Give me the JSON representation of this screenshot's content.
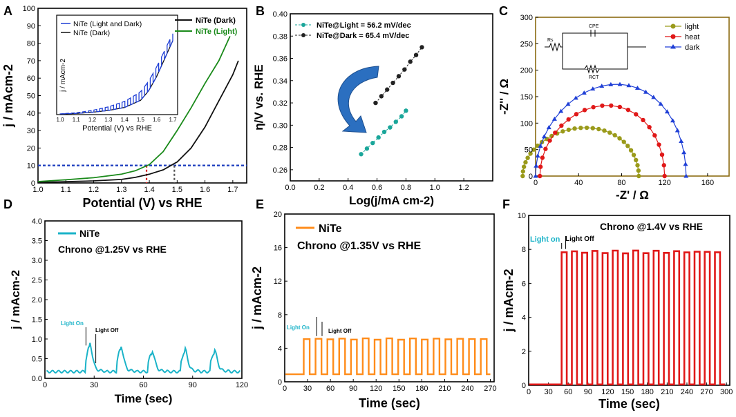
{
  "chart_data": [
    {
      "panel": "A",
      "type": "line",
      "xlabel": "Potential (V) vs RHE",
      "ylabel": "j / mAcm-2",
      "xlim": [
        1.0,
        1.75
      ],
      "ylim": [
        0,
        100
      ],
      "xticks": [
        1.0,
        1.1,
        1.2,
        1.3,
        1.4,
        1.5,
        1.6,
        1.7
      ],
      "yticks": [
        0,
        10,
        20,
        30,
        40,
        50,
        60,
        70,
        80,
        90,
        100
      ],
      "legend": [
        "NiTe (Dark)",
        "NiTe (Light)"
      ],
      "series": [
        {
          "name": "NiTe (Dark)",
          "color": "#111111",
          "x": [
            1.0,
            1.1,
            1.2,
            1.3,
            1.35,
            1.4,
            1.45,
            1.5,
            1.55,
            1.6,
            1.65,
            1.7,
            1.72
          ],
          "y": [
            0.3,
            0.7,
            1.2,
            2.0,
            3.2,
            5.0,
            7.5,
            12,
            20,
            32,
            47,
            62,
            70
          ]
        },
        {
          "name": "NiTe (Light)",
          "color": "#1a8a1a",
          "x": [
            1.0,
            1.1,
            1.2,
            1.3,
            1.35,
            1.4,
            1.45,
            1.5,
            1.55,
            1.6,
            1.65,
            1.69
          ],
          "y": [
            0.8,
            1.8,
            3.0,
            5.0,
            7.0,
            10.5,
            18,
            30,
            43,
            57,
            70,
            84
          ]
        }
      ],
      "reference_line": {
        "y": 10,
        "color": "#1f3fbf"
      },
      "markers": [
        {
          "x": 1.39,
          "color": "#d62020"
        },
        {
          "x": 1.49,
          "color": "#555555"
        }
      ],
      "inset": {
        "xlabel": "Potential (V) vs RHE",
        "ylabel": "j / mAcm-2",
        "xlim": [
          1.0,
          1.7
        ],
        "xticks": [
          "1.0",
          "1.1",
          "1.2",
          "1.3",
          "1.4",
          "1.5",
          "1.6",
          "1.7"
        ],
        "legend": [
          "NiTe (Light and Dark)",
          "NiTe (Dark)"
        ],
        "series": [
          {
            "name": "NiTe (Dark)",
            "color": "#111111",
            "x": [
              1.0,
              1.1,
              1.2,
              1.3,
              1.4,
              1.5,
              1.55,
              1.6,
              1.65,
              1.7
            ],
            "y": [
              0.5,
              1.0,
              2.0,
              3.5,
              6,
              12,
              20,
              32,
              47,
              62
            ]
          },
          {
            "name": "NiTe (Light and Dark)",
            "color": "#1f3fd6",
            "x": [
              1.0,
              1.1,
              1.2,
              1.3,
              1.4,
              1.5,
              1.55,
              1.6,
              1.65,
              1.7
            ],
            "y": [
              0.6,
              1.5,
              3.5,
              6.5,
              11,
              19,
              28,
              40,
              54,
              68
            ]
          }
        ]
      }
    },
    {
      "panel": "B",
      "type": "scatter",
      "xlabel": "Log(j/mA cm-2)",
      "ylabel": "η/V vs. RHE",
      "xlim": [
        0.0,
        1.4
      ],
      "ylim": [
        0.25,
        0.4
      ],
      "xticks": [
        0.0,
        0.2,
        0.4,
        0.6,
        0.8,
        1.0,
        1.2
      ],
      "yticks": [
        0.26,
        0.28,
        0.3,
        0.32,
        0.34,
        0.36,
        0.38,
        0.4
      ],
      "series": [
        {
          "name": "NiTe@Light = 56.2 mV/dec",
          "color": "#1aa69a",
          "x": [
            0.49,
            0.53,
            0.57,
            0.61,
            0.65,
            0.69,
            0.73,
            0.77,
            0.8
          ],
          "y": [
            0.274,
            0.279,
            0.284,
            0.289,
            0.294,
            0.298,
            0.303,
            0.308,
            0.313
          ]
        },
        {
          "name": "NiTe@Dark = 65.4 mV/dec",
          "color": "#222222",
          "x": [
            0.59,
            0.63,
            0.67,
            0.71,
            0.75,
            0.79,
            0.83,
            0.87,
            0.91
          ],
          "y": [
            0.32,
            0.326,
            0.332,
            0.338,
            0.344,
            0.35,
            0.357,
            0.363,
            0.37
          ]
        }
      ]
    },
    {
      "panel": "C",
      "type": "scatter",
      "xlabel": "-Z' / Ω",
      "ylabel": "-Z'' / Ω",
      "xlim": [
        0,
        180
      ],
      "ylim": [
        0,
        300
      ],
      "xticks": [
        0,
        40,
        80,
        120,
        160
      ],
      "yticks": [
        0,
        50,
        100,
        150,
        200,
        250,
        300
      ],
      "circuit_labels": {
        "rs": "Rs",
        "cpe": "CPE",
        "rct": "RCT"
      },
      "series": [
        {
          "name": "light",
          "color": "#9a9a1a",
          "marker": "circle",
          "center": 42,
          "radius": 54,
          "height": 91
        },
        {
          "name": "heat",
          "color": "#e01818",
          "marker": "circle",
          "center": 62,
          "radius": 58,
          "height": 133
        },
        {
          "name": "dark",
          "color": "#1f3fd6",
          "marker": "triangle",
          "center": 70,
          "radius": 70,
          "height": 173
        }
      ]
    },
    {
      "panel": "D",
      "type": "line",
      "title": "Chrono @1.25V vs RHE",
      "legend": [
        "NiTe"
      ],
      "xlabel": "Time (sec)",
      "ylabel": "j / mAcm-2",
      "xlim": [
        0,
        120
      ],
      "ylim": [
        0.0,
        4.0
      ],
      "xticks": [
        0,
        30,
        60,
        90,
        120
      ],
      "yticks": [
        0.0,
        0.5,
        1.0,
        1.5,
        2.0,
        2.5,
        3.0,
        3.5,
        4.0
      ],
      "color": "#1ab3c8",
      "baseline": 0.17,
      "pulses": [
        {
          "t": 25,
          "peak": 0.78
        },
        {
          "t": 44,
          "peak": 0.72
        },
        {
          "t": 63,
          "peak": 0.62
        },
        {
          "t": 83,
          "peak": 0.66
        },
        {
          "t": 101,
          "peak": 0.64
        }
      ],
      "annotations": {
        "on": "Light On",
        "off": "Light Off",
        "on_x": 25,
        "on_y": 0.8,
        "off_x": 31,
        "off_y": 0.35
      }
    },
    {
      "panel": "E",
      "type": "line",
      "title": "Chrono @1.35V vs RHE",
      "legend": [
        "NiTe"
      ],
      "xlabel": "Time (sec)",
      "ylabel": "j / mAcm-2",
      "xlim": [
        0,
        275
      ],
      "ylim": [
        0,
        20
      ],
      "xticks": [
        0,
        30,
        60,
        90,
        120,
        150,
        180,
        210,
        240,
        270
      ],
      "yticks": [
        0,
        4,
        8,
        12,
        16,
        20
      ],
      "color": "#ff8c1a",
      "off_level": 0.9,
      "on_level": 5.1,
      "start": 25,
      "period": 15.5,
      "end": 270,
      "annotations": {
        "on": "Light On",
        "off": "Light Off",
        "on_x": 42,
        "on_y": 5.2,
        "off_x": 49,
        "off_y": 5.2
      }
    },
    {
      "panel": "F",
      "type": "line",
      "title": "Chrono @1.4V vs RHE",
      "xlabel": "Time (sec)",
      "ylabel": "j / mAcm-2",
      "xlim": [
        0,
        305
      ],
      "ylim": [
        0,
        10
      ],
      "xticks": [
        0,
        30,
        60,
        90,
        120,
        150,
        180,
        210,
        240,
        270,
        300
      ],
      "yticks": [
        0,
        2,
        4,
        6,
        8,
        10
      ],
      "color": "#e01818",
      "off_level": 0.05,
      "on_level": 7.85,
      "start": 50,
      "period": 15.5,
      "end": 298,
      "annotations": {
        "on": "Light on",
        "off": "Light Off",
        "on_x": 50,
        "on_y": 7.9,
        "off_x": 56,
        "off_y": 7.9
      }
    }
  ],
  "panel_letters": [
    "A",
    "B",
    "C",
    "D",
    "E",
    "F"
  ],
  "colors": {
    "light_on_label": "#1ab3c8"
  }
}
